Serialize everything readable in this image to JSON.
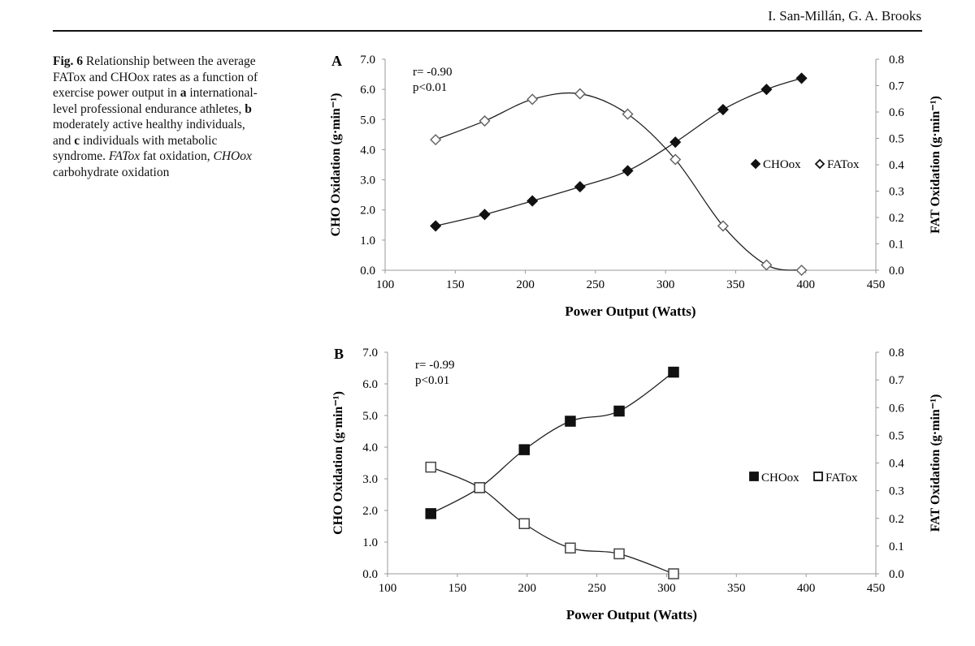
{
  "header": {
    "authors": "I. San-Millán, G. A. Brooks"
  },
  "caption": {
    "label": "Fig. 6",
    "p1": " Relationship between the average FATox and CHOox rates as a function of exercise power output in ",
    "a": "a",
    "p2": " international-level professional endurance athletes, ",
    "b": "b",
    "p3": " moderately active healthy individuals, and ",
    "c": "c",
    "p4": " individuals with metabolic syndrome. ",
    "fatox": "FATox",
    "p5": " fat oxidation, ",
    "choox": "CHOox",
    "p6": " carbohydrate oxidation"
  },
  "chart_data": [
    {
      "type": "line",
      "panel": "A",
      "xlabel": "Power Output (Watts)",
      "ylabel": "CHO Oxidation (g·min⁻¹)",
      "y2label": "FAT Oxidation (g·min⁻¹)",
      "xlim": [
        100,
        450
      ],
      "xticks": [
        "100",
        "150",
        "200",
        "250",
        "300",
        "350",
        "400",
        "450"
      ],
      "ylim": [
        0,
        7
      ],
      "yticks": [
        "0.0",
        "1.0",
        "2.0",
        "3.0",
        "4.0",
        "5.0",
        "6.0",
        "7.0"
      ],
      "y2lim": [
        0,
        0.8
      ],
      "y2ticks": [
        "0.0",
        "0.1",
        "0.2",
        "0.3",
        "0.4",
        "0.5",
        "0.6",
        "0.7",
        "0.8"
      ],
      "annotation": [
        "r= -0.90",
        "p<0.01"
      ],
      "legend": {
        "placement": "right",
        "entries": [
          "CHOox",
          "FATox"
        ]
      },
      "markers": "diamond",
      "series": [
        {
          "name": "CHOox",
          "axis": "left",
          "x": [
            136,
            171,
            205,
            239,
            273,
            307,
            341,
            372,
            397
          ],
          "y": [
            1.47,
            1.85,
            2.3,
            2.77,
            3.3,
            4.25,
            5.33,
            6.0,
            6.37
          ]
        },
        {
          "name": "FATox",
          "axis": "right",
          "x": [
            136,
            171,
            205,
            239,
            273,
            307,
            341,
            372,
            397
          ],
          "y": [
            0.495,
            0.566,
            0.648,
            0.669,
            0.592,
            0.42,
            0.168,
            0.02,
            0.0
          ]
        }
      ]
    },
    {
      "type": "line",
      "panel": "B",
      "xlabel": "Power Output (Watts)",
      "ylabel": "CHO Oxidation (g·min⁻¹)",
      "y2label": "FAT Oxidation (g·min⁻¹)",
      "xlim": [
        100,
        450
      ],
      "xticks": [
        "100",
        "150",
        "200",
        "250",
        "300",
        "350",
        "400",
        "450"
      ],
      "ylim": [
        0,
        7
      ],
      "yticks": [
        "0.0",
        "1.0",
        "2.0",
        "3.0",
        "4.0",
        "5.0",
        "6.0",
        "7.0"
      ],
      "y2lim": [
        0,
        0.8
      ],
      "y2ticks": [
        "0.0",
        "0.1",
        "0.2",
        "0.3",
        "0.4",
        "0.5",
        "0.6",
        "0.7",
        "0.8"
      ],
      "annotation": [
        "r= -0.99",
        "p<0.01"
      ],
      "legend": {
        "placement": "right",
        "entries": [
          "CHOox",
          "FATox"
        ]
      },
      "markers": "square",
      "series": [
        {
          "name": "CHOox",
          "axis": "left",
          "x": [
            131,
            166,
            198,
            231,
            266,
            305
          ],
          "y": [
            1.9,
            2.72,
            3.92,
            4.82,
            5.14,
            6.37
          ]
        },
        {
          "name": "FATox",
          "axis": "right",
          "x": [
            131,
            166,
            198,
            231,
            266,
            305
          ],
          "y": [
            0.385,
            0.311,
            0.181,
            0.093,
            0.072,
            0.0
          ]
        }
      ]
    }
  ]
}
